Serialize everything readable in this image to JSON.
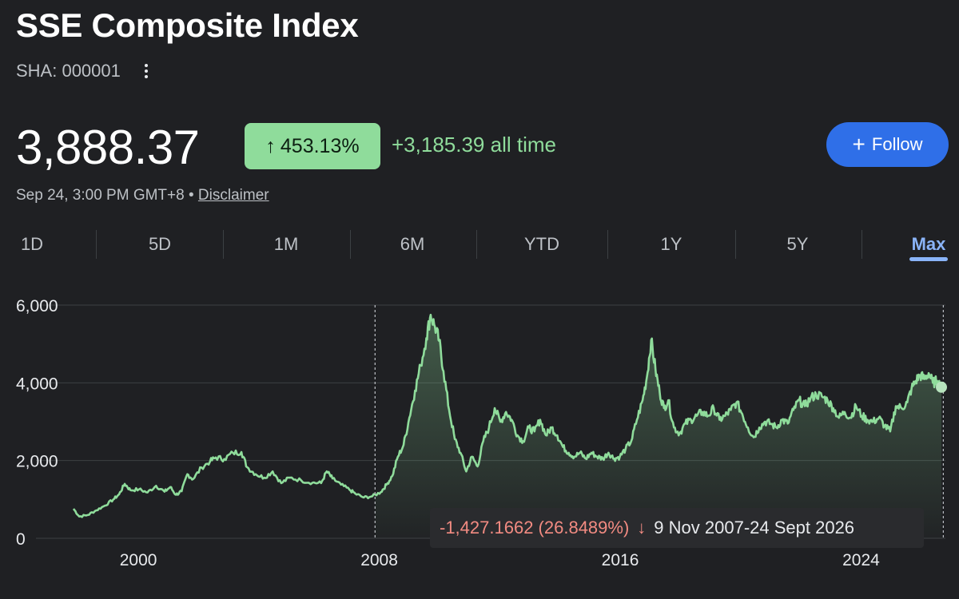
{
  "header": {
    "title": "SSE Composite Index",
    "ticker": "SHA: 000001"
  },
  "quote": {
    "price": "3,888.37",
    "change_arrow": "↑",
    "change_pct": "453.13%",
    "change_abs": "+3,185.39 all time",
    "timestamp": "Sep 24, 3:00 PM GMT+8",
    "separator": "•",
    "disclaimer": "Disclaimer"
  },
  "follow": {
    "plus": "+",
    "label": "Follow"
  },
  "ranges": [
    {
      "label": "1D",
      "active": false
    },
    {
      "label": "5D",
      "active": false
    },
    {
      "label": "1M",
      "active": false
    },
    {
      "label": "6M",
      "active": false
    },
    {
      "label": "YTD",
      "active": false
    },
    {
      "label": "1Y",
      "active": false
    },
    {
      "label": "5Y",
      "active": false
    },
    {
      "label": "Max",
      "active": true
    }
  ],
  "tooltip": {
    "change": "-1,427.1662 (26.8489%)",
    "arrow": "↓",
    "range": "9 Nov 2007-24 Sept 2026"
  },
  "colors": {
    "line": "#8fdc9b",
    "negative": "#f28b82",
    "accent": "#8ab4f8",
    "button": "#2f6fe8"
  },
  "chart_data": {
    "type": "area",
    "ylim": [
      0,
      6000
    ],
    "xlim": [
      1996.6,
      2026.8
    ],
    "y_ticks": [
      0,
      2000,
      4000,
      6000
    ],
    "y_tick_labels": [
      "0",
      "2,000",
      "4,000",
      "6,000"
    ],
    "x_ticks": [
      2000,
      2008,
      2016,
      2024
    ],
    "x_tick_labels": [
      "2000",
      "2008",
      "2016",
      "2024"
    ],
    "grid": true,
    "selection": {
      "start": 2007.86,
      "end": 2026.73
    },
    "series": [
      {
        "points": [
          [
            1997.0,
            760
          ],
          [
            1997.2,
            560
          ],
          [
            1997.5,
            600
          ],
          [
            1997.8,
            720
          ],
          [
            1998.1,
            840
          ],
          [
            1998.4,
            1000
          ],
          [
            1998.6,
            1130
          ],
          [
            1998.8,
            1400
          ],
          [
            1999.0,
            1240
          ],
          [
            1999.3,
            1260
          ],
          [
            1999.6,
            1180
          ],
          [
            1999.9,
            1350
          ],
          [
            2000.2,
            1200
          ],
          [
            2000.4,
            1320
          ],
          [
            2000.6,
            1120
          ],
          [
            2000.8,
            1210
          ],
          [
            2001.0,
            1650
          ],
          [
            2001.2,
            1520
          ],
          [
            2001.5,
            1820
          ],
          [
            2001.8,
            1980
          ],
          [
            2002.0,
            2080
          ],
          [
            2002.3,
            2040
          ],
          [
            2002.6,
            2200
          ],
          [
            2002.9,
            2220
          ],
          [
            2003.1,
            1830
          ],
          [
            2003.4,
            1650
          ],
          [
            2003.7,
            1560
          ],
          [
            2004.0,
            1720
          ],
          [
            2004.3,
            1420
          ],
          [
            2004.6,
            1560
          ],
          [
            2005.0,
            1490
          ],
          [
            2005.4,
            1430
          ],
          [
            2005.7,
            1420
          ],
          [
            2005.9,
            1720
          ],
          [
            2006.1,
            1540
          ],
          [
            2006.4,
            1380
          ],
          [
            2006.7,
            1250
          ],
          [
            2006.9,
            1150
          ],
          [
            2007.2,
            1050
          ],
          [
            2007.5,
            1080
          ],
          [
            2007.8,
            1190
          ],
          [
            2008.0,
            1380
          ],
          [
            2008.2,
            1600
          ],
          [
            2008.4,
            2100
          ],
          [
            2008.6,
            2400
          ],
          [
            2008.8,
            3100
          ],
          [
            2009.0,
            3800
          ],
          [
            2009.2,
            4450
          ],
          [
            2009.4,
            5150
          ],
          [
            2009.55,
            5750
          ],
          [
            2009.7,
            5450
          ],
          [
            2009.85,
            5080
          ],
          [
            2010.0,
            4300
          ],
          [
            2010.2,
            3300
          ],
          [
            2010.4,
            2550
          ],
          [
            2010.6,
            2200
          ],
          [
            2010.8,
            1720
          ],
          [
            2011.0,
            2100
          ],
          [
            2011.2,
            1850
          ],
          [
            2011.4,
            2500
          ],
          [
            2011.6,
            2850
          ],
          [
            2011.8,
            3350
          ],
          [
            2012.0,
            3000
          ],
          [
            2012.2,
            3250
          ],
          [
            2012.4,
            3050
          ],
          [
            2012.6,
            2650
          ],
          [
            2012.8,
            2500
          ],
          [
            2013.0,
            2850
          ],
          [
            2013.2,
            2750
          ],
          [
            2013.4,
            3050
          ],
          [
            2013.6,
            2650
          ],
          [
            2013.8,
            2850
          ],
          [
            2014.0,
            2650
          ],
          [
            2014.2,
            2350
          ],
          [
            2014.4,
            2200
          ],
          [
            2014.6,
            2100
          ],
          [
            2014.8,
            2200
          ],
          [
            2015.0,
            2050
          ],
          [
            2015.2,
            2200
          ],
          [
            2015.4,
            2100
          ],
          [
            2015.6,
            2050
          ],
          [
            2015.8,
            2200
          ],
          [
            2016.0,
            2050
          ],
          [
            2016.2,
            2100
          ],
          [
            2016.4,
            2300
          ],
          [
            2016.6,
            2500
          ],
          [
            2016.8,
            3050
          ],
          [
            2017.0,
            3550
          ],
          [
            2017.15,
            4150
          ],
          [
            2017.3,
            5100
          ],
          [
            2017.45,
            4350
          ],
          [
            2017.6,
            3750
          ],
          [
            2017.75,
            3350
          ],
          [
            2017.9,
            3550
          ],
          [
            2018.1,
            2850
          ],
          [
            2018.3,
            2700
          ],
          [
            2018.5,
            2950
          ],
          [
            2018.7,
            3050
          ],
          [
            2018.9,
            3150
          ],
          [
            2019.1,
            3250
          ],
          [
            2019.3,
            3150
          ],
          [
            2019.5,
            3350
          ],
          [
            2019.7,
            3050
          ],
          [
            2019.9,
            3150
          ],
          [
            2020.1,
            3300
          ],
          [
            2020.3,
            3500
          ],
          [
            2020.5,
            3200
          ],
          [
            2020.7,
            2850
          ],
          [
            2020.9,
            2600
          ],
          [
            2021.1,
            2850
          ],
          [
            2021.3,
            3000
          ],
          [
            2021.5,
            2950
          ],
          [
            2021.7,
            2850
          ],
          [
            2021.9,
            3050
          ],
          [
            2022.1,
            2950
          ],
          [
            2022.3,
            3300
          ],
          [
            2022.5,
            3550
          ],
          [
            2022.7,
            3400
          ],
          [
            2022.9,
            3600
          ],
          [
            2023.1,
            3700
          ],
          [
            2023.3,
            3650
          ],
          [
            2023.5,
            3550
          ],
          [
            2023.7,
            3350
          ],
          [
            2023.9,
            3100
          ],
          [
            2024.1,
            3250
          ],
          [
            2024.3,
            3100
          ],
          [
            2024.5,
            3400
          ],
          [
            2024.7,
            3150
          ],
          [
            2024.9,
            3050
          ],
          [
            2025.1,
            3000
          ],
          [
            2025.3,
            3100
          ],
          [
            2025.5,
            2900
          ],
          [
            2025.7,
            2750
          ],
          [
            2025.9,
            3400
          ],
          [
            2026.1,
            3350
          ],
          [
            2026.3,
            3500
          ],
          [
            2026.45,
            3850
          ],
          [
            2026.6,
            4050
          ],
          [
            2026.75,
            4200
          ],
          [
            2026.9,
            4100
          ],
          [
            2027.05,
            4250
          ],
          [
            2027.2,
            4000
          ],
          [
            2027.35,
            4050
          ],
          [
            2027.5,
            3888
          ]
        ]
      }
    ]
  }
}
